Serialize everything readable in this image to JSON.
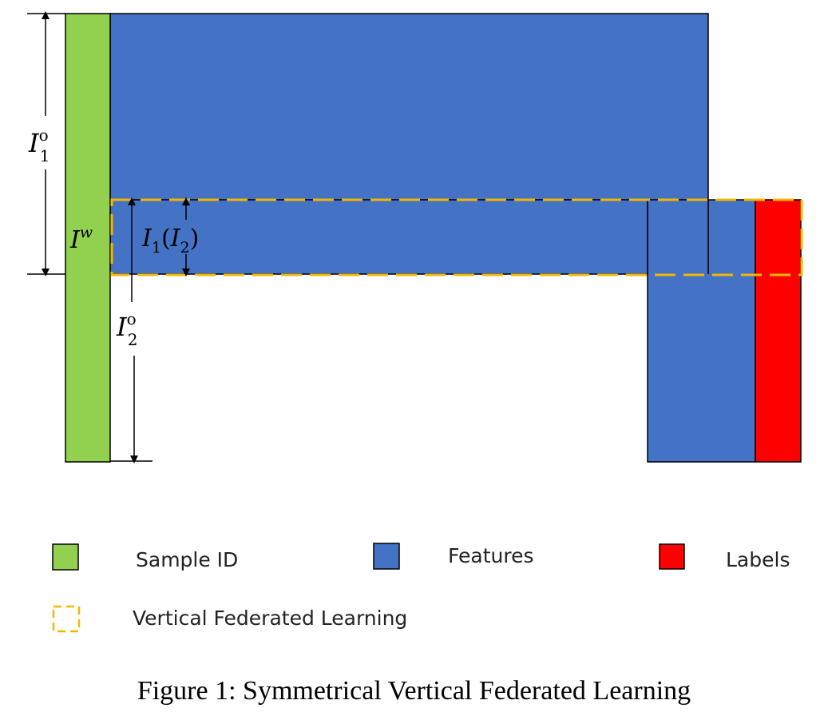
{
  "colors": {
    "sample_id": "#92D050",
    "features": "#4472C4",
    "labels": "#FF0000",
    "vfl_border": "#F2B705",
    "stroke": "#000000"
  },
  "math": {
    "I1o_base": "I",
    "I1o_sup": "o",
    "I1o_sub": "1",
    "I2o_base": "I",
    "I2o_sup": "o",
    "I2o_sub": "2",
    "Iw_base": "I",
    "Iw_sup": "w",
    "I1I2_base1": "I",
    "I1I2_sub1": "1",
    "I1I2_open": "(",
    "I1I2_base2": "I",
    "I1I2_sub2": "2",
    "I1I2_close": ")"
  },
  "legend": {
    "sample_id": "Sample ID",
    "features": "Features",
    "labels": "Labels",
    "vfl": "Vertical Federated Learning"
  },
  "caption": "Figure 1: Symmetrical Vertical Federated Learning"
}
